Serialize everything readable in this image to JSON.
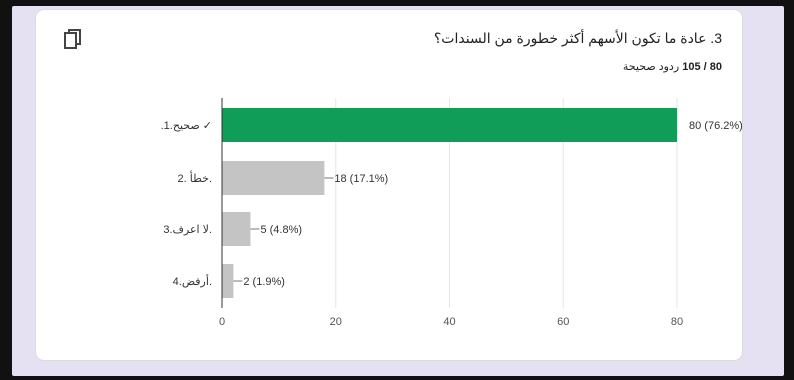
{
  "question": {
    "title": "3. عادة ما تكون الأسهم أكثر خطورة من السندات؟",
    "score_label": "80 / 105",
    "score_suffix": "ردود صحيحة"
  },
  "icons": {
    "copy": "copy-icon",
    "check": "check-icon"
  },
  "colors": {
    "correct_bar": "#0f9d58",
    "other_bar": "#c4c4c4",
    "axis": "#333333"
  },
  "chart_data": {
    "type": "bar",
    "orientation": "horizontal",
    "categories": [
      ".صحيح.1 ✓",
      "خطأ .2.",
      "لا اعرف.3.",
      "أرفض.4."
    ],
    "values": [
      80,
      18,
      5,
      2
    ],
    "data_labels": [
      "80 (76.2%)",
      "18 (17.1%)",
      "5 (4.8%)",
      "2 (1.9%)"
    ],
    "correct_index": 0,
    "xticks": [
      0,
      20,
      40,
      60,
      80
    ],
    "xlim": [
      0,
      80
    ],
    "grid": true
  }
}
